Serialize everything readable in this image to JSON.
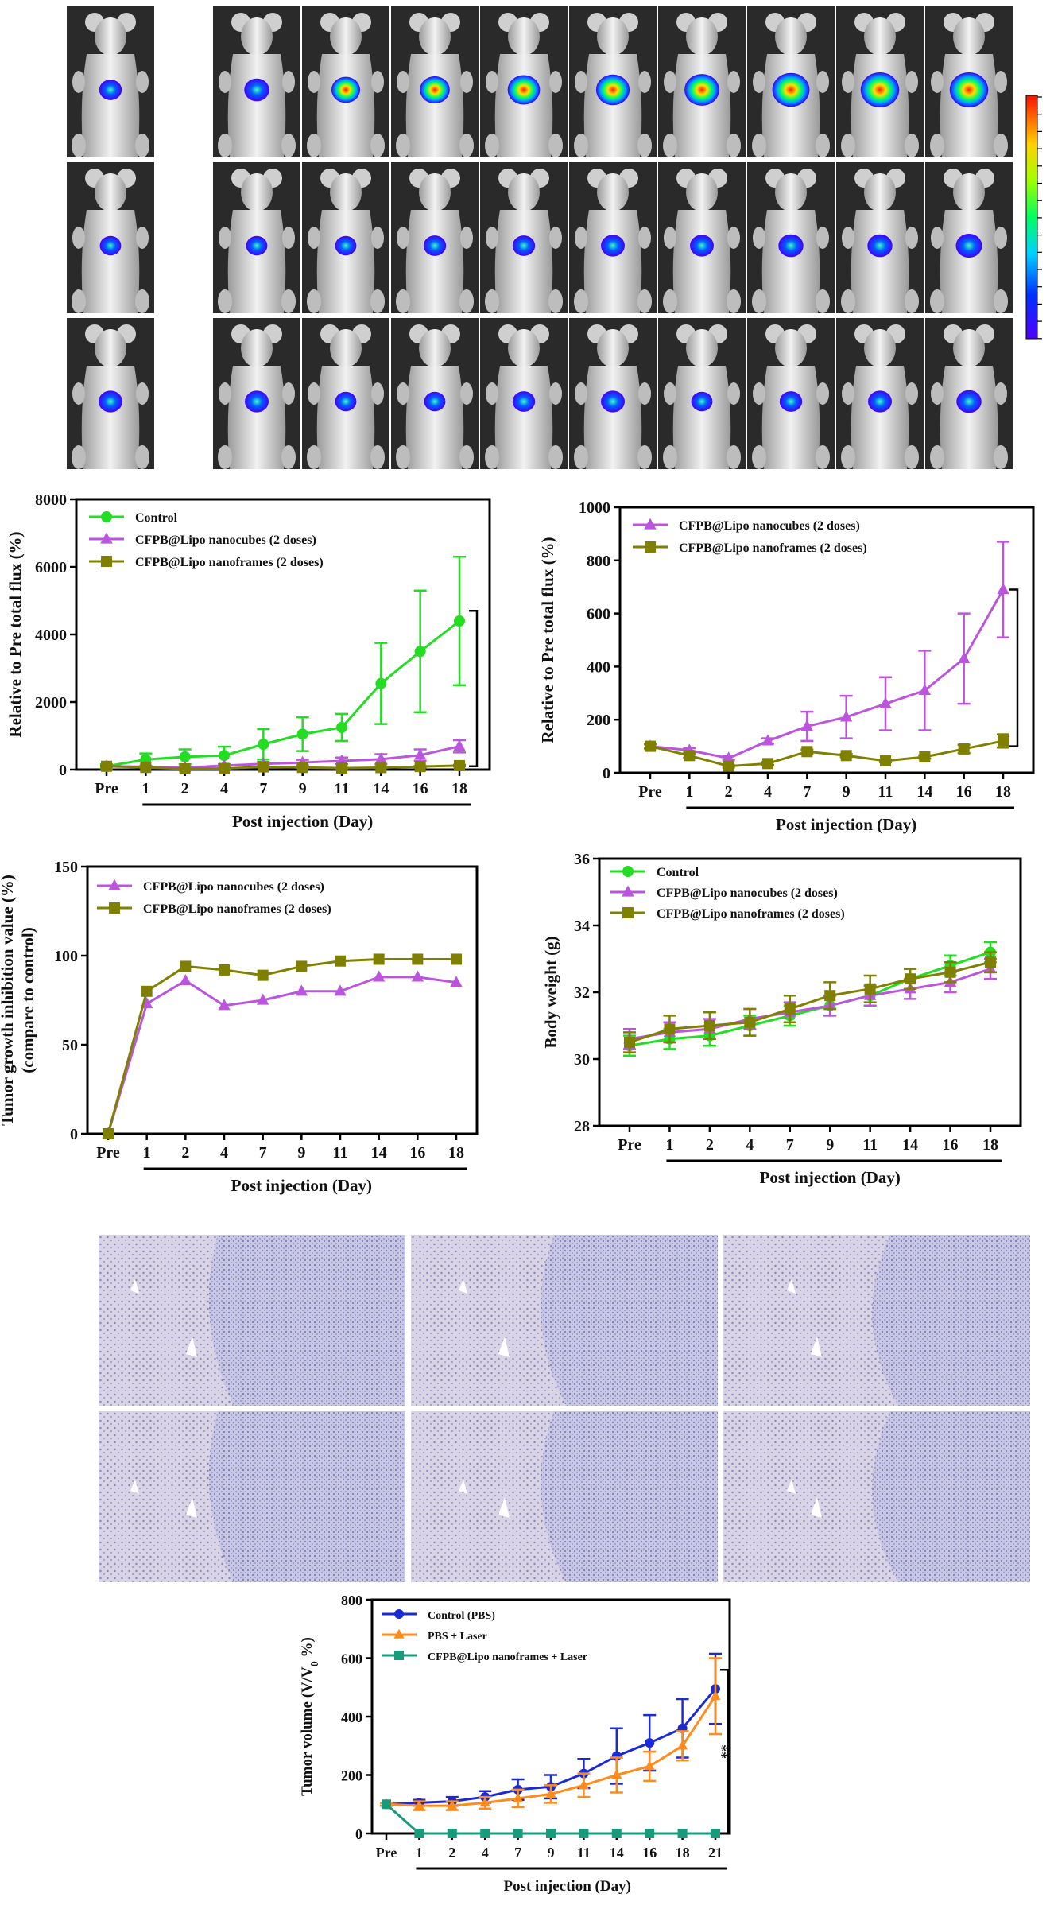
{
  "colors": {
    "control": "#22dd22",
    "nanocubes": "#bb55dd",
    "nanoframes": "#808000",
    "pbs": "#1a2bd6",
    "pbs_laser": "#ff8c1a",
    "nanoframes_laser": "#1a9a7a",
    "imaging_bg": "#2a2a2a",
    "tissue": "#d9d3e6"
  },
  "imaging": {
    "rows": 3,
    "columns_after": 9,
    "signal_levels": [
      [
        0.35,
        0.45,
        0.6,
        0.65,
        0.75,
        0.8,
        0.85,
        0.95,
        1.0,
        1.0
      ],
      [
        0.3,
        0.3,
        0.3,
        0.35,
        0.35,
        0.4,
        0.4,
        0.45,
        0.45,
        0.5
      ],
      [
        0.4,
        0.4,
        0.3,
        0.3,
        0.35,
        0.4,
        0.3,
        0.35,
        0.4,
        0.45
      ]
    ]
  },
  "histology": {
    "rows": 2,
    "columns": 3
  },
  "chart_data": [
    {
      "type": "line",
      "x": [
        "Pre",
        "1",
        "2",
        "4",
        "7",
        "9",
        "11",
        "14",
        "16",
        "18"
      ],
      "xlabel": "Post injection (Day)",
      "ylabel": "Relative to Pre total flux (%)",
      "ylim": [
        0,
        8000
      ],
      "yticks": [
        "0",
        "2000",
        "4000",
        "6000",
        "8000"
      ],
      "legend": "top-left",
      "series": [
        {
          "name": "Control",
          "values": [
            100,
            300,
            380,
            420,
            750,
            1050,
            1250,
            2550,
            3500,
            4400
          ],
          "err": [
            60,
            180,
            220,
            260,
            450,
            500,
            400,
            1200,
            1800,
            1900
          ]
        },
        {
          "name": "CFPB@Lipo nanocubes (2 doses)",
          "values": [
            100,
            85,
            60,
            120,
            170,
            210,
            260,
            310,
            430,
            690
          ],
          "err": [
            20,
            20,
            20,
            30,
            60,
            80,
            100,
            150,
            170,
            180
          ]
        },
        {
          "name": "CFPB@Lipo nanoframes (2 doses)",
          "values": [
            100,
            65,
            25,
            35,
            80,
            65,
            45,
            60,
            90,
            120
          ],
          "err": [
            20,
            15,
            10,
            10,
            15,
            12,
            10,
            12,
            20,
            25
          ]
        }
      ]
    },
    {
      "type": "line",
      "x": [
        "Pre",
        "1",
        "2",
        "4",
        "7",
        "9",
        "11",
        "14",
        "16",
        "18"
      ],
      "xlabel": "Post injection (Day)",
      "ylabel": "Relative to Pre total flux (%)",
      "ylim": [
        0,
        1000
      ],
      "yticks": [
        "0",
        "200",
        "400",
        "600",
        "800",
        "1000"
      ],
      "legend": "top-left",
      "series": [
        {
          "name": "CFPB@Lipo nanocubes (2 doses)",
          "values": [
            100,
            85,
            55,
            120,
            175,
            210,
            260,
            310,
            430,
            690
          ],
          "err": [
            8,
            8,
            8,
            10,
            55,
            80,
            100,
            150,
            170,
            180
          ]
        },
        {
          "name": "CFPB@Lipo nanoframes (2 doses)",
          "values": [
            100,
            65,
            25,
            35,
            80,
            65,
            45,
            60,
            90,
            120
          ],
          "err": [
            8,
            8,
            5,
            5,
            8,
            6,
            5,
            6,
            15,
            25
          ]
        }
      ]
    },
    {
      "type": "line",
      "x": [
        "Pre",
        "1",
        "2",
        "4",
        "7",
        "9",
        "11",
        "14",
        "16",
        "18"
      ],
      "xlabel": "Post injection (Day)",
      "ylabel": "Tumor growth inhibition value (%)",
      "ylabel2": "(compare to control)",
      "ylim": [
        0,
        150
      ],
      "yticks": [
        "0",
        "50",
        "100",
        "150"
      ],
      "legend": "top-left",
      "series": [
        {
          "name": "CFPB@Lipo nanocubes (2 doses)",
          "values": [
            0,
            73,
            86,
            72,
            75,
            80,
            80,
            88,
            88,
            85
          ]
        },
        {
          "name": "CFPB@Lipo nanoframes (2 doses)",
          "values": [
            0,
            80,
            94,
            92,
            89,
            94,
            97,
            98,
            98,
            98
          ]
        }
      ]
    },
    {
      "type": "line",
      "x": [
        "Pre",
        "1",
        "2",
        "4",
        "7",
        "9",
        "11",
        "14",
        "16",
        "18"
      ],
      "xlabel": "Post injection (Day)",
      "ylabel": "Body weight (g)",
      "ylim": [
        28,
        36
      ],
      "yticks": [
        "28",
        "30",
        "32",
        "34",
        "36"
      ],
      "legend": "top-left",
      "series": [
        {
          "name": "Control",
          "values": [
            30.4,
            30.6,
            30.7,
            31.0,
            31.3,
            31.6,
            31.9,
            32.4,
            32.8,
            33.2
          ],
          "err": [
            0.3,
            0.3,
            0.3,
            0.3,
            0.3,
            0.3,
            0.3,
            0.3,
            0.3,
            0.3
          ]
        },
        {
          "name": "CFPB@Lipo nanocubes (2 doses)",
          "values": [
            30.6,
            30.8,
            30.9,
            31.2,
            31.4,
            31.6,
            31.9,
            32.1,
            32.3,
            32.7
          ],
          "err": [
            0.3,
            0.3,
            0.3,
            0.3,
            0.3,
            0.3,
            0.3,
            0.3,
            0.3,
            0.3
          ]
        },
        {
          "name": "CFPB@Lipo nanoframes (2 doses)",
          "values": [
            30.5,
            30.9,
            31.0,
            31.1,
            31.5,
            31.9,
            32.1,
            32.4,
            32.6,
            32.9
          ],
          "err": [
            0.3,
            0.4,
            0.4,
            0.4,
            0.4,
            0.4,
            0.4,
            0.3,
            0.3,
            0.3
          ]
        }
      ]
    },
    {
      "type": "line",
      "x": [
        "Pre",
        "1",
        "2",
        "4",
        "7",
        "9",
        "11",
        "14",
        "16",
        "18",
        "21"
      ],
      "xlabel": "Post injection (Day)",
      "ylabel": "Tumor volume (V/V",
      "ylabel_sub": "0",
      "ylabel_end": " %)",
      "ylim": [
        0,
        800
      ],
      "yticks": [
        "0",
        "200",
        "400",
        "600",
        "800"
      ],
      "legend": "top-left",
      "annotation": "**",
      "series": [
        {
          "name": "Control (PBS)",
          "values": [
            100,
            105,
            110,
            125,
            150,
            160,
            205,
            265,
            310,
            360,
            495
          ],
          "err": [
            5,
            10,
            15,
            20,
            35,
            40,
            50,
            95,
            95,
            100,
            120
          ]
        },
        {
          "name": "PBS + Laser",
          "values": [
            100,
            95,
            95,
            105,
            120,
            135,
            165,
            200,
            230,
            300,
            470
          ],
          "err": [
            5,
            15,
            15,
            20,
            30,
            30,
            40,
            60,
            50,
            50,
            130
          ]
        },
        {
          "name": "CFPB@Lipo nanoframes + Laser",
          "values": [
            100,
            0,
            0,
            0,
            0,
            0,
            0,
            0,
            0,
            0,
            0
          ],
          "err": [
            0,
            0,
            0,
            0,
            0,
            0,
            0,
            0,
            0,
            0,
            0
          ]
        }
      ]
    }
  ]
}
